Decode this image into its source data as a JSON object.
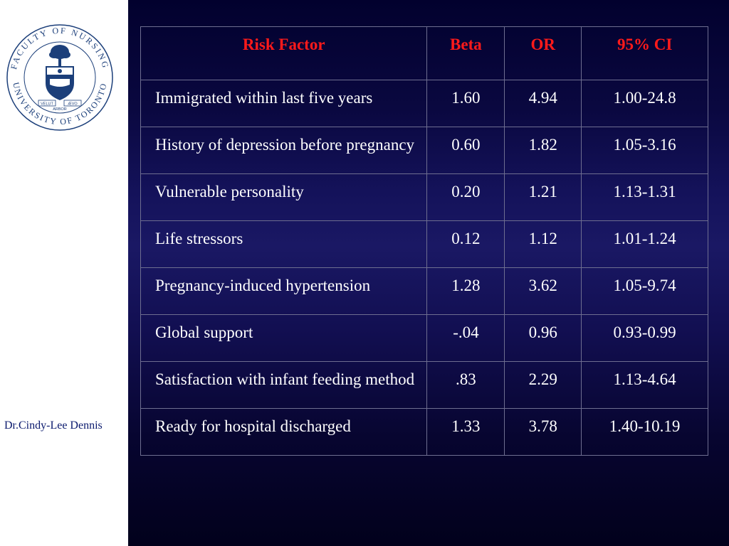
{
  "logo": {
    "top_text": "FACULTY OF NURSING",
    "bottom_text": "UNIVERSITY OF TORONTO",
    "motto_left": "VELUT",
    "motto_center": "ARBOR",
    "motto_right": "ÆVO"
  },
  "author": "Dr.Cindy-Lee Dennis",
  "table": {
    "headers": [
      "Risk Factor",
      "Beta",
      "OR",
      "95% CI"
    ],
    "rows": [
      {
        "factor": "Immigrated within last five years",
        "beta": "1.60",
        "or": "4.94",
        "ci": "1.00-24.8"
      },
      {
        "factor": "History of depression before pregnancy",
        "beta": "0.60",
        "or": "1.82",
        "ci": "1.05-3.16"
      },
      {
        "factor": "Vulnerable personality",
        "beta": "0.20",
        "or": "1.21",
        "ci": "1.13-1.31"
      },
      {
        "factor": "Life stressors",
        "beta": "0.12",
        "or": "1.12",
        "ci": "1.01-1.24"
      },
      {
        "factor": "Pregnancy-induced hypertension",
        "beta": "1.28",
        "or": "3.62",
        "ci": "1.05-9.74"
      },
      {
        "factor": "Global support",
        "beta": "-.04",
        "or": "0.96",
        "ci": "0.93-0.99"
      },
      {
        "factor": "Satisfaction with infant feeding method",
        "beta": ".83",
        "or": "2.29",
        "ci": "1.13-4.64"
      },
      {
        "factor": "Ready for hospital discharged",
        "beta": "1.33",
        "or": "3.78",
        "ci": "1.40-10.19"
      }
    ]
  },
  "colors": {
    "header_text": "#ff1a1a",
    "body_text": "#ffffff",
    "background": "#0a0840",
    "logo_blue": "#1c3f7a"
  }
}
